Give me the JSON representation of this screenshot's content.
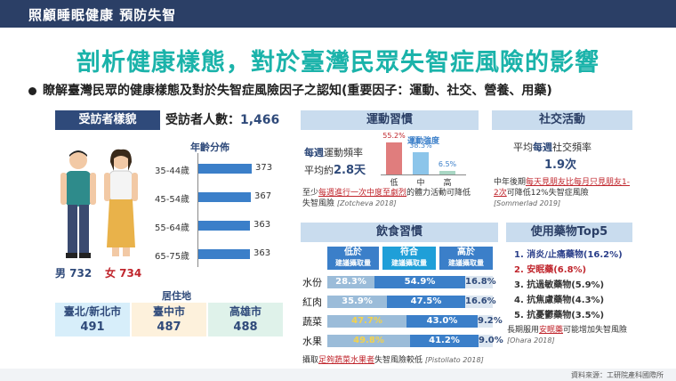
{
  "header": {
    "title": "照顧睡眠健康 預防失智"
  },
  "main_title": "剖析健康樣態，對於臺灣民眾失智症風險的影響",
  "bullet": "瞭解臺灣民眾的健康樣態及對於失智症風險因子之認知(重要因子：運動、社交、營養、用藥)",
  "respondents": {
    "heading": "受訪者樣貌",
    "count_label": "受訪者人數：",
    "count_value": "1,466",
    "age_title": "年齡分佈",
    "age_groups": [
      {
        "label": "35-44歲",
        "value": 373
      },
      {
        "label": "45-54歲",
        "value": 367
      },
      {
        "label": "55-64歲",
        "value": 363
      },
      {
        "label": "65-75歲",
        "value": 363
      }
    ],
    "male_label": "男 732",
    "female_label": "女 734",
    "residence_title": "居住地",
    "residence": [
      {
        "name": "臺北/新北市",
        "value": "491",
        "color": "#d7eefa"
      },
      {
        "name": "臺中市",
        "value": "487",
        "color": "#fdf1dc"
      },
      {
        "name": "高雄市",
        "value": "488",
        "color": "#dff2ea"
      }
    ]
  },
  "exercise": {
    "heading": "運動習慣",
    "freq_line_a": "每週",
    "freq_line_b": "運動頻率",
    "avg_line_a": "平均約",
    "avg_value": "2.8天",
    "chart_title": "運動強度",
    "bars": [
      {
        "label": "低",
        "value": "55.2%",
        "color": "#e07d7d"
      },
      {
        "label": "中",
        "value": "38.3%",
        "color": "#8cc5ea"
      },
      {
        "label": "高",
        "value": "6.5%",
        "color": "#a9d7c4"
      }
    ],
    "note_a": "至少",
    "note_b": "每週進行一次中度至劇烈",
    "note_c": "的體力活動可降低失智風險",
    "note_ref": "[Zotcheva 2018]"
  },
  "social": {
    "heading": "社交活動",
    "line1a": "平均",
    "line1b": "每週",
    "line1c": "社交頻率",
    "value": "1.9次",
    "note_a": "中年後期",
    "note_b": "每天見朋友比每月只見朋友1-2次",
    "note_c": "可降低12%失智症風險",
    "note_ref": "[Sommerlad 2019]"
  },
  "diet": {
    "heading": "飲食習慣",
    "cols": [
      {
        "top": "低於",
        "bottom": "建議攝取量"
      },
      {
        "top": "符合",
        "bottom": "建議攝取量"
      },
      {
        "top": "高於",
        "bottom": "建議攝取量"
      }
    ],
    "rows": [
      {
        "name": "水份",
        "low": "28.3%",
        "mid": "54.9%",
        "high": "16.8%",
        "pl": 28.3,
        "pm": 54.9,
        "ph": 16.8
      },
      {
        "name": "紅肉",
        "low": "35.9%",
        "mid": "47.5%",
        "high": "16.6%",
        "pl": 35.9,
        "pm": 47.5,
        "ph": 16.6
      },
      {
        "name": "蔬菜",
        "low": "47.7%",
        "mid": "43.0%",
        "high": "9.2%",
        "pl": 47.7,
        "pm": 43.0,
        "ph": 9.2
      },
      {
        "name": "水果",
        "low": "49.8%",
        "mid": "41.2%",
        "high": "9.0%",
        "pl": 49.8,
        "pm": 41.2,
        "ph": 9.0
      }
    ],
    "note_a": "攝取",
    "note_b": "足夠蔬菜水果者",
    "note_c": "失智風險較低",
    "note_ref": "[Pistollato 2018]"
  },
  "meds": {
    "heading": "使用藥物Top5",
    "items": [
      {
        "text": "1. 消炎/止痛藥物(16.2%)",
        "color": "#2b3f8a"
      },
      {
        "text": "2. 安眠藥(6.8%)",
        "color": "#c0262d"
      },
      {
        "text": "3. 抗過敏藥物(5.9%)",
        "color": "#333333"
      },
      {
        "text": "4. 抗焦慮藥物(4.3%)",
        "color": "#333333"
      },
      {
        "text": "5. 抗憂鬱藥物(3.5%)",
        "color": "#333333"
      }
    ],
    "note_a": "長期服用",
    "note_b": "安眠藥",
    "note_c": "可能增加失智風險",
    "note_ref": "[Ohara 2018]"
  },
  "source": "資料來源：工研院產科國際所"
}
